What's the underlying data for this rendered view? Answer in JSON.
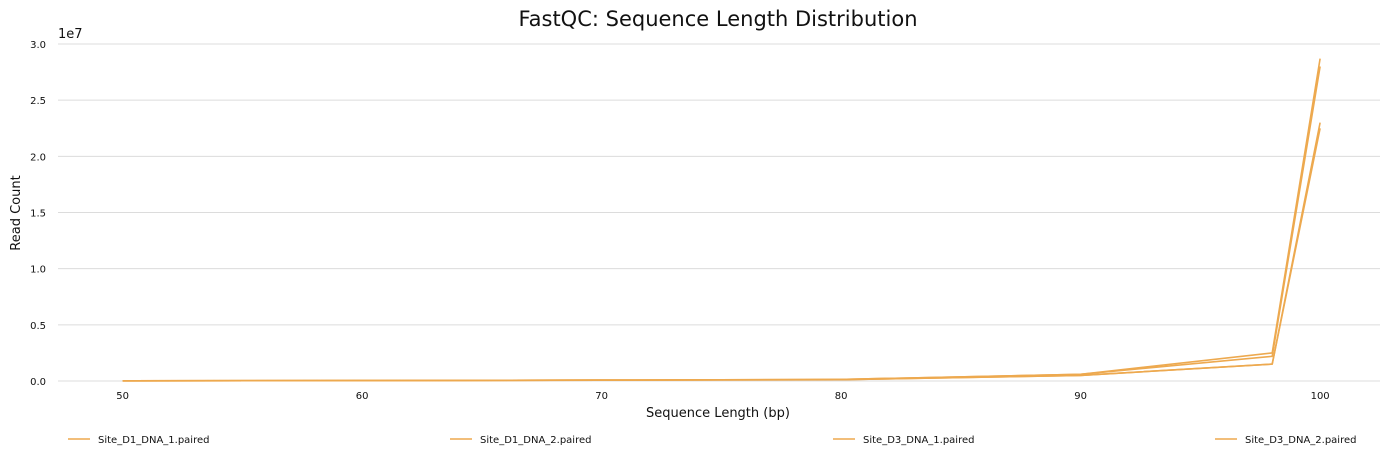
{
  "chart_data": {
    "type": "line",
    "title": "FastQC: Sequence Length Distribution",
    "xlabel": "Sequence Length (bp)",
    "ylabel": "Read Count",
    "y_exponent_label": "1e7",
    "xlim": [
      47.3,
      102.5
    ],
    "ylim": [
      0,
      3.0
    ],
    "x_ticks": [
      50,
      60,
      70,
      80,
      90,
      100
    ],
    "x_tick_labels": [
      "50",
      "60",
      "70",
      "80",
      "90",
      "100"
    ],
    "y_ticks": [
      0,
      0.5,
      1.0,
      1.5,
      2.0,
      2.5,
      3.0
    ],
    "y_tick_labels": [
      "0.0",
      "0.5",
      "1.0",
      "1.5",
      "2.0",
      "2.5",
      "3.0"
    ],
    "grid": "horizontal",
    "legend_position": "bottom",
    "color": "#eda94f",
    "series": [
      {
        "name": "Site_D1_DNA_1.paired",
        "x": [
          50,
          60,
          70,
          80,
          90,
          98,
          100
        ],
        "y": [
          0.002,
          0.004,
          0.007,
          0.012,
          0.05,
          0.15,
          2.3
        ]
      },
      {
        "name": "Site_D1_DNA_2.paired",
        "x": [
          50,
          60,
          70,
          80,
          90,
          98,
          100
        ],
        "y": [
          0.002,
          0.004,
          0.007,
          0.012,
          0.05,
          0.15,
          2.25
        ]
      },
      {
        "name": "Site_D3_DNA_1.paired",
        "x": [
          50,
          60,
          70,
          80,
          90,
          98,
          100
        ],
        "y": [
          0.002,
          0.004,
          0.008,
          0.014,
          0.06,
          0.25,
          2.87
        ]
      },
      {
        "name": "Site_D3_DNA_2.paired",
        "x": [
          50,
          60,
          70,
          80,
          90,
          98,
          100
        ],
        "y": [
          0.002,
          0.004,
          0.008,
          0.014,
          0.06,
          0.22,
          2.8
        ]
      }
    ]
  }
}
